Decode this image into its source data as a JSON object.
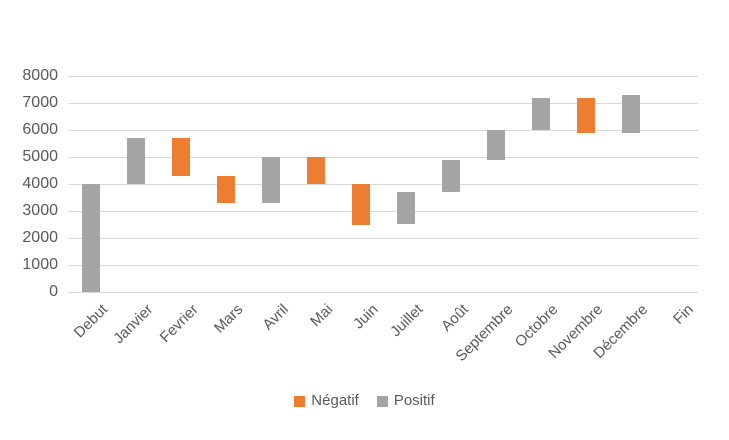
{
  "chart_data": {
    "type": "bar",
    "subtype": "waterfall",
    "title": "",
    "categories": [
      "Debut",
      "Janvier",
      "Fevrier",
      "Mars",
      "Avril",
      "Mai",
      "Juin",
      "Juillet",
      "Août",
      "Septembre",
      "Octobre",
      "Novembre",
      "Décembre",
      "Fin"
    ],
    "bars": [
      {
        "category": "Debut",
        "from": 0,
        "to": 4000,
        "series": "Positif"
      },
      {
        "category": "Janvier",
        "from": 4000,
        "to": 5700,
        "series": "Positif"
      },
      {
        "category": "Fevrier",
        "from": 5700,
        "to": 4300,
        "series": "Négatif"
      },
      {
        "category": "Mars",
        "from": 4300,
        "to": 3300,
        "series": "Négatif"
      },
      {
        "category": "Avril",
        "from": 3300,
        "to": 5000,
        "series": "Positif"
      },
      {
        "category": "Mai",
        "from": 5000,
        "to": 4000,
        "series": "Négatif"
      },
      {
        "category": "Juin",
        "from": 4000,
        "to": 2500,
        "series": "Négatif"
      },
      {
        "category": "Juillet",
        "from": 2500,
        "to": 3700,
        "series": "Positif"
      },
      {
        "category": "Août",
        "from": 3700,
        "to": 4900,
        "series": "Positif"
      },
      {
        "category": "Septembre",
        "from": 4900,
        "to": 6000,
        "series": "Positif"
      },
      {
        "category": "Octobre",
        "from": 6000,
        "to": 7200,
        "series": "Positif"
      },
      {
        "category": "Novembre",
        "from": 7200,
        "to": 5900,
        "series": "Négatif"
      },
      {
        "category": "Décembre",
        "from": 5900,
        "to": 7300,
        "series": "Positif"
      },
      {
        "category": "Fin",
        "from": null,
        "to": null,
        "series": null
      }
    ],
    "series": [
      {
        "name": "Négatif",
        "color": "#ED7D31"
      },
      {
        "name": "Positif",
        "color": "#A5A5A5"
      }
    ],
    "y_axis": {
      "min": 0,
      "max": 8000,
      "step": 1000,
      "tick_labels": [
        "0",
        "1000",
        "2000",
        "3000",
        "4000",
        "5000",
        "6000",
        "7000",
        "8000"
      ]
    },
    "grid": true,
    "legend_position": "bottom",
    "legend": {
      "items": [
        {
          "label": "Négatif",
          "color": "#ED7D31"
        },
        {
          "label": "Positif",
          "color": "#A5A5A5"
        }
      ]
    },
    "colors": {
      "negative": "#ED7D31",
      "positive": "#A5A5A5",
      "gridline": "#D9D9D9",
      "text": "#595959",
      "background": "#FFFFFF"
    }
  }
}
